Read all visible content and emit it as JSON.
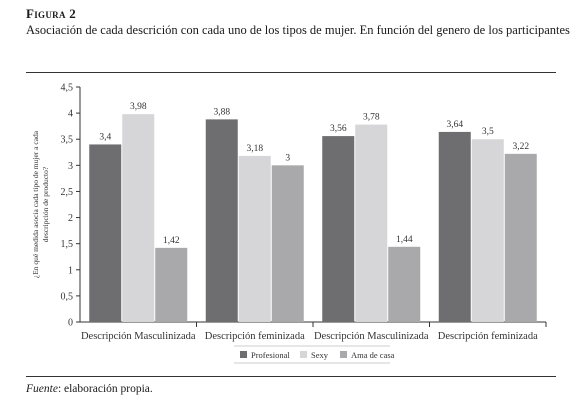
{
  "figure": {
    "label": "Figura 2",
    "title": "Asociación de cada descrición con cada uno de los tipos de mujer. En función del genero de los participantes",
    "source_label": "Fuente",
    "source_text": ": elaboración propia."
  },
  "chart_data": {
    "type": "bar",
    "categories": [
      "Descripción Masculinizada",
      "Descripción feminizada",
      "Descripción Masculinizada",
      "Descripción feminizada"
    ],
    "series": [
      {
        "name": "Profesional",
        "values": [
          3.4,
          3.88,
          3.56,
          3.64
        ],
        "labels": [
          "3,4",
          "3,88",
          "3,56",
          "3,64"
        ],
        "color": "#6e6e70"
      },
      {
        "name": "Sexy",
        "values": [
          3.98,
          3.18,
          3.78,
          3.5
        ],
        "labels": [
          "3,98",
          "3,18",
          "3,78",
          "3,5"
        ],
        "color": "#d6d6d8"
      },
      {
        "name": "Ama de casa",
        "values": [
          1.42,
          3,
          1.44,
          3.22
        ],
        "labels": [
          "1,42",
          "3",
          "1,44",
          "3,22"
        ],
        "color": "#a9a9ab"
      }
    ],
    "ylabel": "¿En qué medida asocia cada tipo de mujer a cada descripción de producto?",
    "ylim": [
      0,
      4.5
    ],
    "yticks": [
      0,
      0.5,
      1,
      1.5,
      2,
      2.5,
      3,
      3.5,
      4,
      4.5
    ],
    "ytick_labels": [
      "0",
      "0,5",
      "1",
      "1,5",
      "2",
      "2,5",
      "3",
      "3,5",
      "4",
      "4,5"
    ],
    "grid": false,
    "legend": "bottom"
  }
}
